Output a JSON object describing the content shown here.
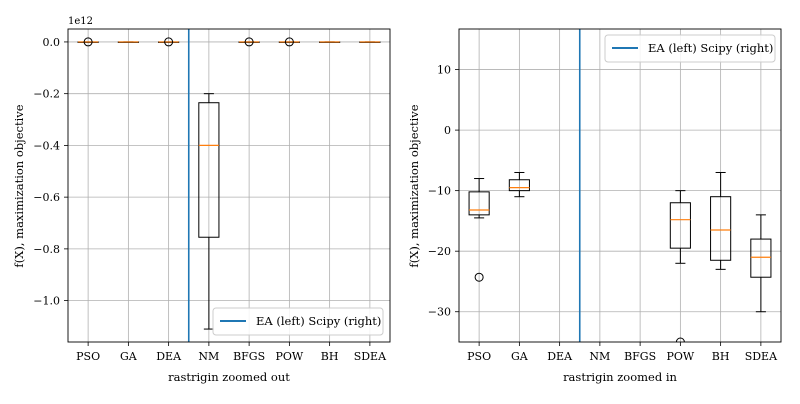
{
  "figure": {
    "type": "boxplot-figure",
    "panels": 2
  },
  "chart_data": [
    {
      "type": "box",
      "title": "",
      "xlabel": "rastrigin zoomed out",
      "ylabel": "f(X), maximization objective",
      "y_offset_label": "1e12",
      "y_scale": 1000000000000.0,
      "ylim": [
        -1.16,
        0.05
      ],
      "yticks": [
        0.0,
        -0.2,
        -0.4,
        -0.6,
        -0.8,
        -1.0
      ],
      "ytick_labels": [
        "0.0",
        "−0.2",
        "−0.4",
        "−0.6",
        "−0.8",
        "−1.0"
      ],
      "grid": true,
      "categories": [
        "PSO",
        "GA",
        "DEA",
        "NM",
        "BFGS",
        "POW",
        "BH",
        "SDEA"
      ],
      "divider_after_index": 2.5,
      "legend": {
        "label": "EA (left) Scipy (right)",
        "position": "lower-right",
        "color": "#1f77b4"
      },
      "boxes": [
        {
          "cat": "PSO",
          "min": 0.0,
          "q1": 0.0,
          "median": 0.0,
          "q3": 0.0,
          "max": 0.0,
          "outliers": [
            0.0
          ]
        },
        {
          "cat": "GA",
          "min": 0.0,
          "q1": 0.0,
          "median": 0.0,
          "q3": 0.0,
          "max": 0.0,
          "outliers": []
        },
        {
          "cat": "DEA",
          "min": 0.0,
          "q1": 0.0,
          "median": 0.0,
          "q3": 0.0,
          "max": 0.0,
          "outliers": [
            0.0
          ]
        },
        {
          "cat": "NM",
          "min": -1.11,
          "q1": -0.755,
          "median": -0.4,
          "q3": -0.235,
          "max": -0.2,
          "outliers": []
        },
        {
          "cat": "BFGS",
          "min": 0.0,
          "q1": 0.0,
          "median": 0.0,
          "q3": 0.0,
          "max": 0.0,
          "outliers": [
            0.0
          ]
        },
        {
          "cat": "POW",
          "min": 0.0,
          "q1": 0.0,
          "median": 0.0,
          "q3": 0.0,
          "max": 0.0,
          "outliers": [
            0.0
          ]
        },
        {
          "cat": "BH",
          "min": 0.0,
          "q1": 0.0,
          "median": 0.0,
          "q3": 0.0,
          "max": 0.0,
          "outliers": []
        },
        {
          "cat": "SDEA",
          "min": 0.0,
          "q1": 0.0,
          "median": 0.0,
          "q3": 0.0,
          "max": 0.0,
          "outliers": []
        }
      ]
    },
    {
      "type": "box",
      "title": "",
      "xlabel": "rastrigin zoomed in",
      "ylabel": "f(X), maximization objective",
      "y_offset_label": "",
      "y_scale": 1,
      "ylim": [
        -35,
        16.7
      ],
      "yticks": [
        10,
        0,
        -10,
        -20,
        -30
      ],
      "ytick_labels": [
        "10",
        "0",
        "−10",
        "−20",
        "−30"
      ],
      "grid": true,
      "categories": [
        "PSO",
        "GA",
        "DEA",
        "NM",
        "BFGS",
        "POW",
        "BH",
        "SDEA"
      ],
      "divider_after_index": 2.5,
      "legend": {
        "label": "EA (left) Scipy (right)",
        "position": "upper-right",
        "color": "#1f77b4"
      },
      "boxes": [
        {
          "cat": "PSO",
          "min": -14.5,
          "q1": -14.0,
          "median": -13.2,
          "q3": -10.2,
          "max": -8.0,
          "outliers": [
            -24.3
          ]
        },
        {
          "cat": "GA",
          "min": -11.0,
          "q1": -10.0,
          "median": -9.5,
          "q3": -8.2,
          "max": -7.0,
          "outliers": []
        },
        {
          "cat": "POW",
          "min": -22.0,
          "q1": -19.5,
          "median": -14.8,
          "q3": -12.0,
          "max": -10.0,
          "outliers": [
            -35.0
          ]
        },
        {
          "cat": "BH",
          "min": -23.0,
          "q1": -21.5,
          "median": -16.5,
          "q3": -11.0,
          "max": -7.0,
          "outliers": []
        },
        {
          "cat": "SDEA",
          "min": -30.0,
          "q1": -24.3,
          "median": -21.0,
          "q3": -18.0,
          "max": -14.0,
          "outliers": []
        }
      ]
    }
  ],
  "colors": {
    "median": "#ff7f0e",
    "divider": "#1f77b4",
    "grid": "#b0b0b0",
    "box": "#000000"
  }
}
